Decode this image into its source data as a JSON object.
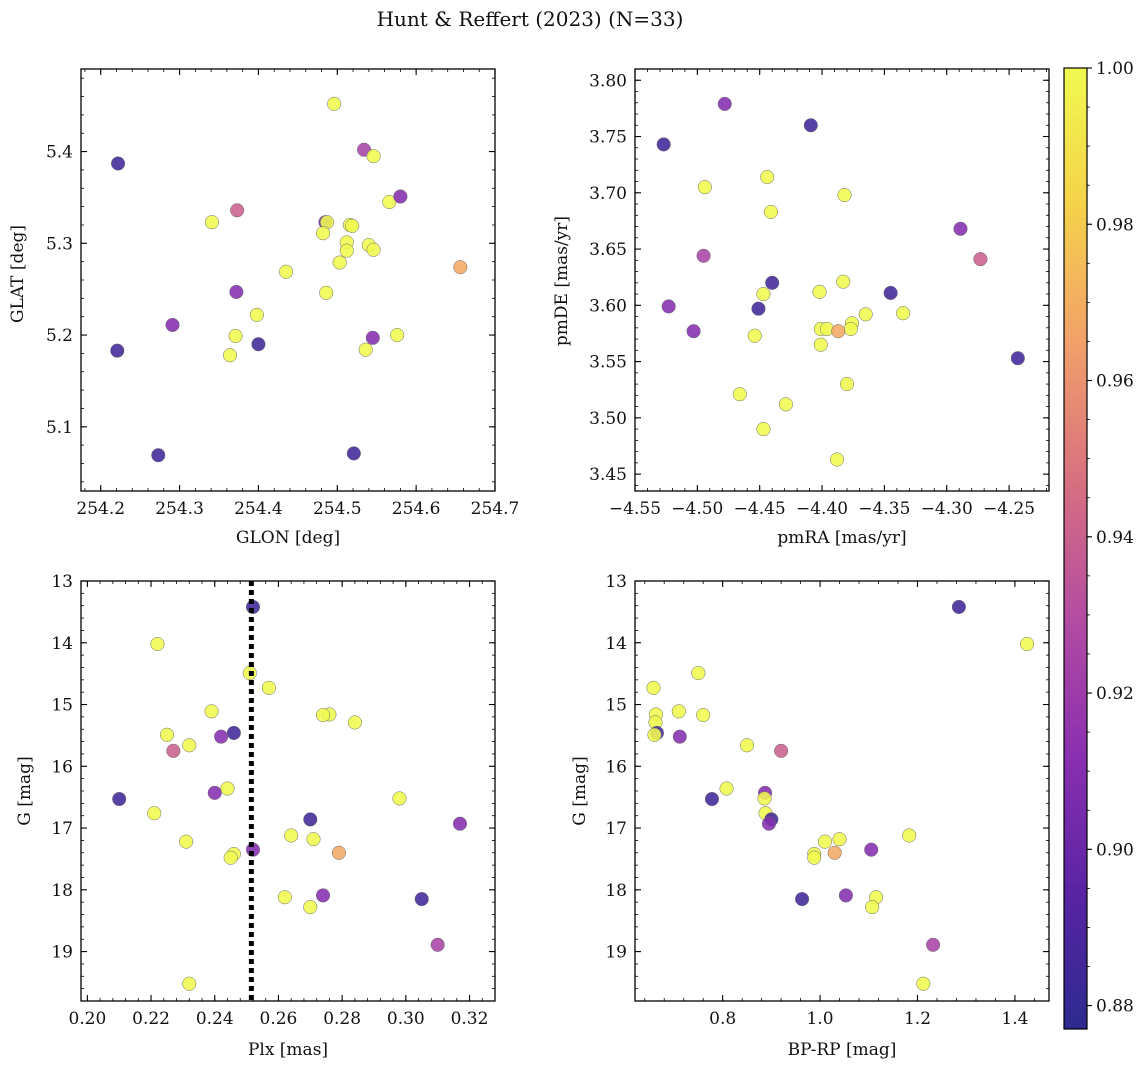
{
  "figure": {
    "title": "Hunt & Reffert (2023) (N=33)"
  },
  "colorbar": {
    "min": 0.877,
    "max": 1.0,
    "ticks": [
      0.88,
      0.9,
      0.92,
      0.94,
      0.96,
      0.98,
      1.0
    ],
    "tick_labels": [
      "0.88",
      "0.90",
      "0.92",
      "0.94",
      "0.96",
      "0.98",
      "1.00"
    ],
    "colormap": "plasma",
    "stops": [
      "#2c2a8f",
      "#5a24a3",
      "#8a2fb0",
      "#b44ca2",
      "#d8707f",
      "#f2a06a",
      "#f5d24a",
      "#f0f94f"
    ]
  },
  "chart_data": [
    {
      "type": "scatter",
      "panel": "top-left",
      "xlabel": "GLON [deg]",
      "ylabel": "GLAT [deg]",
      "xlim": [
        254.175,
        254.7
      ],
      "ylim": [
        5.03,
        5.49
      ],
      "xticks": [
        254.2,
        254.3,
        254.4,
        254.5,
        254.6,
        254.7
      ],
      "xtick_labels": [
        "254.2",
        "254.3",
        "254.4",
        "254.5",
        "254.6",
        "254.7"
      ],
      "yticks": [
        5.1,
        5.2,
        5.3,
        5.4
      ],
      "ytick_labels": [
        "5.1",
        "5.2",
        "5.3",
        "5.4"
      ],
      "points": [
        {
          "x": 254.222,
          "y": 5.387,
          "c": 0.885
        },
        {
          "x": 254.221,
          "y": 5.183,
          "c": 0.885
        },
        {
          "x": 254.273,
          "y": 5.069,
          "c": 0.885
        },
        {
          "x": 254.291,
          "y": 5.211,
          "c": 0.91
        },
        {
          "x": 254.341,
          "y": 5.323,
          "c": 1.0
        },
        {
          "x": 254.373,
          "y": 5.336,
          "c": 0.94
        },
        {
          "x": 254.372,
          "y": 5.247,
          "c": 0.91
        },
        {
          "x": 254.371,
          "y": 5.199,
          "c": 1.0
        },
        {
          "x": 254.364,
          "y": 5.178,
          "c": 1.0
        },
        {
          "x": 254.398,
          "y": 5.222,
          "c": 1.0
        },
        {
          "x": 254.4,
          "y": 5.19,
          "c": 0.885
        },
        {
          "x": 254.435,
          "y": 5.269,
          "c": 1.0
        },
        {
          "x": 254.485,
          "y": 5.323,
          "c": 0.9
        },
        {
          "x": 254.487,
          "y": 5.323,
          "c": 1.0
        },
        {
          "x": 254.482,
          "y": 5.311,
          "c": 1.0
        },
        {
          "x": 254.486,
          "y": 5.246,
          "c": 1.0
        },
        {
          "x": 254.496,
          "y": 5.452,
          "c": 1.0
        },
        {
          "x": 254.503,
          "y": 5.279,
          "c": 1.0
        },
        {
          "x": 254.512,
          "y": 5.301,
          "c": 1.0
        },
        {
          "x": 254.516,
          "y": 5.32,
          "c": 1.0
        },
        {
          "x": 254.512,
          "y": 5.292,
          "c": 1.0
        },
        {
          "x": 254.519,
          "y": 5.319,
          "c": 1.0
        },
        {
          "x": 254.521,
          "y": 5.071,
          "c": 0.885
        },
        {
          "x": 254.534,
          "y": 5.402,
          "c": 0.925
        },
        {
          "x": 254.54,
          "y": 5.298,
          "c": 1.0
        },
        {
          "x": 254.546,
          "y": 5.395,
          "c": 1.0
        },
        {
          "x": 254.546,
          "y": 5.293,
          "c": 1.0
        },
        {
          "x": 254.545,
          "y": 5.197,
          "c": 0.91
        },
        {
          "x": 254.536,
          "y": 5.184,
          "c": 1.0
        },
        {
          "x": 254.566,
          "y": 5.345,
          "c": 1.0
        },
        {
          "x": 254.576,
          "y": 5.2,
          "c": 1.0
        },
        {
          "x": 254.58,
          "y": 5.351,
          "c": 0.91
        },
        {
          "x": 254.656,
          "y": 5.274,
          "c": 0.968
        }
      ]
    },
    {
      "type": "scatter",
      "panel": "top-right",
      "xlabel": "pmRA [mas/yr]",
      "ylabel": "pmDE [mas/yr]",
      "xlim": [
        -4.55,
        -4.218
      ],
      "ylim": [
        3.435,
        3.81
      ],
      "xticks": [
        -4.55,
        -4.5,
        -4.45,
        -4.4,
        -4.35,
        -4.3,
        -4.25
      ],
      "xtick_labels": [
        "−4.55",
        "−4.50",
        "−4.45",
        "−4.40",
        "−4.35",
        "−4.30",
        "−4.25"
      ],
      "yticks": [
        3.45,
        3.5,
        3.55,
        3.6,
        3.65,
        3.7,
        3.75,
        3.8
      ],
      "ytick_labels": [
        "3.45",
        "3.50",
        "3.55",
        "3.60",
        "3.65",
        "3.70",
        "3.75",
        "3.80"
      ],
      "points": [
        {
          "x": -4.527,
          "y": 3.743,
          "c": 0.885
        },
        {
          "x": -4.478,
          "y": 3.779,
          "c": 0.91
        },
        {
          "x": -4.409,
          "y": 3.76,
          "c": 0.885
        },
        {
          "x": -4.494,
          "y": 3.705,
          "c": 1.0
        },
        {
          "x": -4.444,
          "y": 3.714,
          "c": 1.0
        },
        {
          "x": -4.441,
          "y": 3.683,
          "c": 1.0
        },
        {
          "x": -4.382,
          "y": 3.698,
          "c": 1.0
        },
        {
          "x": -4.289,
          "y": 3.668,
          "c": 0.91
        },
        {
          "x": -4.273,
          "y": 3.641,
          "c": 0.94
        },
        {
          "x": -4.495,
          "y": 3.644,
          "c": 0.925
        },
        {
          "x": -4.44,
          "y": 3.62,
          "c": 0.885
        },
        {
          "x": -4.383,
          "y": 3.621,
          "c": 1.0
        },
        {
          "x": -4.345,
          "y": 3.611,
          "c": 0.885
        },
        {
          "x": -4.447,
          "y": 3.61,
          "c": 1.0
        },
        {
          "x": -4.402,
          "y": 3.612,
          "c": 1.0
        },
        {
          "x": -4.523,
          "y": 3.599,
          "c": 0.91
        },
        {
          "x": -4.451,
          "y": 3.597,
          "c": 0.885
        },
        {
          "x": -4.335,
          "y": 3.593,
          "c": 1.0
        },
        {
          "x": -4.365,
          "y": 3.592,
          "c": 1.0
        },
        {
          "x": -4.376,
          "y": 3.584,
          "c": 1.0
        },
        {
          "x": -4.401,
          "y": 3.579,
          "c": 1.0
        },
        {
          "x": -4.396,
          "y": 3.579,
          "c": 1.0
        },
        {
          "x": -4.377,
          "y": 3.579,
          "c": 1.0
        },
        {
          "x": -4.387,
          "y": 3.577,
          "c": 0.968
        },
        {
          "x": -4.503,
          "y": 3.577,
          "c": 0.91
        },
        {
          "x": -4.454,
          "y": 3.573,
          "c": 1.0
        },
        {
          "x": -4.401,
          "y": 3.565,
          "c": 1.0
        },
        {
          "x": -4.243,
          "y": 3.553,
          "c": 0.885
        },
        {
          "x": -4.38,
          "y": 3.53,
          "c": 1.0
        },
        {
          "x": -4.466,
          "y": 3.521,
          "c": 1.0
        },
        {
          "x": -4.429,
          "y": 3.512,
          "c": 1.0
        },
        {
          "x": -4.447,
          "y": 3.49,
          "c": 1.0
        },
        {
          "x": -4.388,
          "y": 3.463,
          "c": 1.0
        }
      ]
    },
    {
      "type": "scatter",
      "panel": "bottom-left",
      "xlabel": "Plx [mas]",
      "ylabel": "G [mag]",
      "xlim": [
        0.198,
        0.328
      ],
      "ylim": [
        13.0,
        19.8
      ],
      "y_inverted": true,
      "xticks": [
        0.2,
        0.22,
        0.24,
        0.26,
        0.28,
        0.3,
        0.32
      ],
      "xtick_labels": [
        "0.20",
        "0.22",
        "0.24",
        "0.26",
        "0.28",
        "0.30",
        "0.32"
      ],
      "yticks": [
        13,
        14,
        15,
        16,
        17,
        18,
        19
      ],
      "ytick_labels": [
        "13",
        "14",
        "15",
        "16",
        "17",
        "18",
        "19"
      ],
      "vline": 0.2515,
      "points": [
        {
          "x": 0.252,
          "y": 13.42,
          "c": 0.885
        },
        {
          "x": 0.222,
          "y": 14.02,
          "c": 1.0
        },
        {
          "x": 0.251,
          "y": 14.49,
          "c": 1.0
        },
        {
          "x": 0.257,
          "y": 14.73,
          "c": 1.0
        },
        {
          "x": 0.239,
          "y": 15.11,
          "c": 1.0
        },
        {
          "x": 0.276,
          "y": 15.16,
          "c": 1.0
        },
        {
          "x": 0.274,
          "y": 15.17,
          "c": 1.0
        },
        {
          "x": 0.284,
          "y": 15.29,
          "c": 1.0
        },
        {
          "x": 0.246,
          "y": 15.46,
          "c": 0.885
        },
        {
          "x": 0.225,
          "y": 15.49,
          "c": 1.0
        },
        {
          "x": 0.242,
          "y": 15.52,
          "c": 0.91
        },
        {
          "x": 0.232,
          "y": 15.66,
          "c": 1.0
        },
        {
          "x": 0.227,
          "y": 15.75,
          "c": 0.94
        },
        {
          "x": 0.244,
          "y": 16.36,
          "c": 1.0
        },
        {
          "x": 0.24,
          "y": 16.43,
          "c": 0.91
        },
        {
          "x": 0.298,
          "y": 16.52,
          "c": 1.0
        },
        {
          "x": 0.21,
          "y": 16.53,
          "c": 0.885
        },
        {
          "x": 0.221,
          "y": 16.76,
          "c": 1.0
        },
        {
          "x": 0.27,
          "y": 16.86,
          "c": 0.885
        },
        {
          "x": 0.317,
          "y": 16.93,
          "c": 0.91
        },
        {
          "x": 0.264,
          "y": 17.12,
          "c": 1.0
        },
        {
          "x": 0.271,
          "y": 17.18,
          "c": 1.0
        },
        {
          "x": 0.231,
          "y": 17.22,
          "c": 1.0
        },
        {
          "x": 0.252,
          "y": 17.35,
          "c": 0.91
        },
        {
          "x": 0.279,
          "y": 17.4,
          "c": 0.968
        },
        {
          "x": 0.246,
          "y": 17.42,
          "c": 1.0
        },
        {
          "x": 0.245,
          "y": 17.48,
          "c": 1.0
        },
        {
          "x": 0.274,
          "y": 18.09,
          "c": 0.91
        },
        {
          "x": 0.262,
          "y": 18.12,
          "c": 1.0
        },
        {
          "x": 0.305,
          "y": 18.15,
          "c": 0.885
        },
        {
          "x": 0.27,
          "y": 18.28,
          "c": 1.0
        },
        {
          "x": 0.31,
          "y": 18.89,
          "c": 0.925
        },
        {
          "x": 0.232,
          "y": 19.52,
          "c": 1.0
        }
      ]
    },
    {
      "type": "scatter",
      "panel": "bottom-right",
      "xlabel": "BP-RP [mag]",
      "ylabel": "G [mag]",
      "xlim": [
        0.62,
        1.47
      ],
      "ylim": [
        13.0,
        19.8
      ],
      "y_inverted": true,
      "xticks": [
        0.8,
        1.0,
        1.2,
        1.4
      ],
      "xtick_labels": [
        "0.8",
        "1.0",
        "1.2",
        "1.4"
      ],
      "yticks": [
        13,
        14,
        15,
        16,
        17,
        18,
        19
      ],
      "ytick_labels": [
        "13",
        "14",
        "15",
        "16",
        "17",
        "18",
        "19"
      ],
      "points": [
        {
          "x": 1.285,
          "y": 13.42,
          "c": 0.885
        },
        {
          "x": 1.425,
          "y": 14.02,
          "c": 1.0
        },
        {
          "x": 0.75,
          "y": 14.49,
          "c": 1.0
        },
        {
          "x": 0.658,
          "y": 14.73,
          "c": 1.0
        },
        {
          "x": 0.71,
          "y": 15.11,
          "c": 1.0
        },
        {
          "x": 0.76,
          "y": 15.17,
          "c": 1.0
        },
        {
          "x": 0.663,
          "y": 15.16,
          "c": 1.0
        },
        {
          "x": 0.662,
          "y": 15.29,
          "c": 1.0
        },
        {
          "x": 0.665,
          "y": 15.46,
          "c": 0.885
        },
        {
          "x": 0.66,
          "y": 15.49,
          "c": 1.0
        },
        {
          "x": 0.712,
          "y": 15.52,
          "c": 0.91
        },
        {
          "x": 0.85,
          "y": 15.66,
          "c": 1.0
        },
        {
          "x": 0.92,
          "y": 15.75,
          "c": 0.94
        },
        {
          "x": 0.808,
          "y": 16.36,
          "c": 1.0
        },
        {
          "x": 0.887,
          "y": 16.43,
          "c": 0.91
        },
        {
          "x": 0.886,
          "y": 16.52,
          "c": 1.0
        },
        {
          "x": 0.778,
          "y": 16.53,
          "c": 0.885
        },
        {
          "x": 0.888,
          "y": 16.76,
          "c": 1.0
        },
        {
          "x": 0.9,
          "y": 16.86,
          "c": 0.885
        },
        {
          "x": 0.895,
          "y": 16.93,
          "c": 0.91
        },
        {
          "x": 1.183,
          "y": 17.12,
          "c": 1.0
        },
        {
          "x": 1.04,
          "y": 17.18,
          "c": 1.0
        },
        {
          "x": 1.01,
          "y": 17.22,
          "c": 1.0
        },
        {
          "x": 1.105,
          "y": 17.35,
          "c": 0.91
        },
        {
          "x": 1.03,
          "y": 17.4,
          "c": 0.968
        },
        {
          "x": 0.988,
          "y": 17.42,
          "c": 1.0
        },
        {
          "x": 0.988,
          "y": 17.48,
          "c": 1.0
        },
        {
          "x": 1.053,
          "y": 18.09,
          "c": 0.91
        },
        {
          "x": 1.115,
          "y": 18.12,
          "c": 1.0
        },
        {
          "x": 0.963,
          "y": 18.15,
          "c": 0.885
        },
        {
          "x": 1.107,
          "y": 18.28,
          "c": 1.0
        },
        {
          "x": 1.232,
          "y": 18.89,
          "c": 0.925
        },
        {
          "x": 1.212,
          "y": 19.52,
          "c": 1.0
        }
      ]
    }
  ]
}
